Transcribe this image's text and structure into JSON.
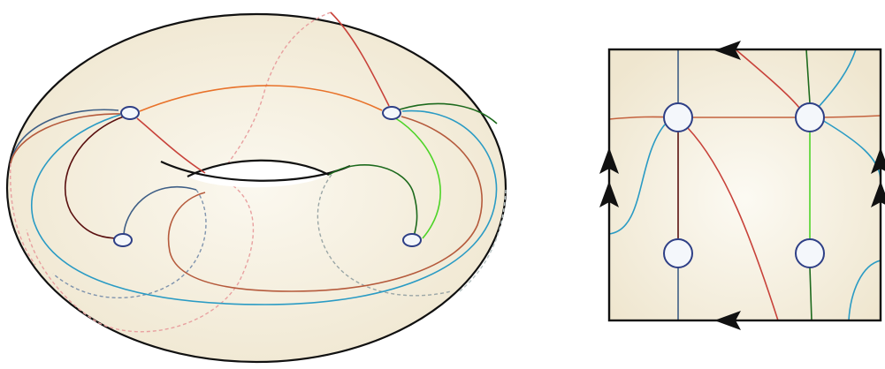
{
  "diagram": {
    "left_panel": "torus-embedding",
    "right_panel": "square-fundamental-domain",
    "colors": {
      "surface_fill": "#efe6cf",
      "surface_highlight": "#fbf8ef",
      "outline": "#111111",
      "vertex_stroke": "#2e3f86",
      "vertex_fill": "#f4f7fb",
      "orange": "#e8722a",
      "red": "#c8423a",
      "pink_dashed": "#e8a0a0",
      "dark_red": "#5a1010",
      "brown": "#b55a3c",
      "slate_blue": "#3f5f86",
      "light_blue": "#2a9bc4",
      "dark_green": "#1d6a1d",
      "light_green": "#4ed428",
      "gray_dashed": "#9aa6a6"
    },
    "torus_vertex_count": 4,
    "square_vertex_count": 4,
    "arrow_glyph": "arrowhead"
  }
}
